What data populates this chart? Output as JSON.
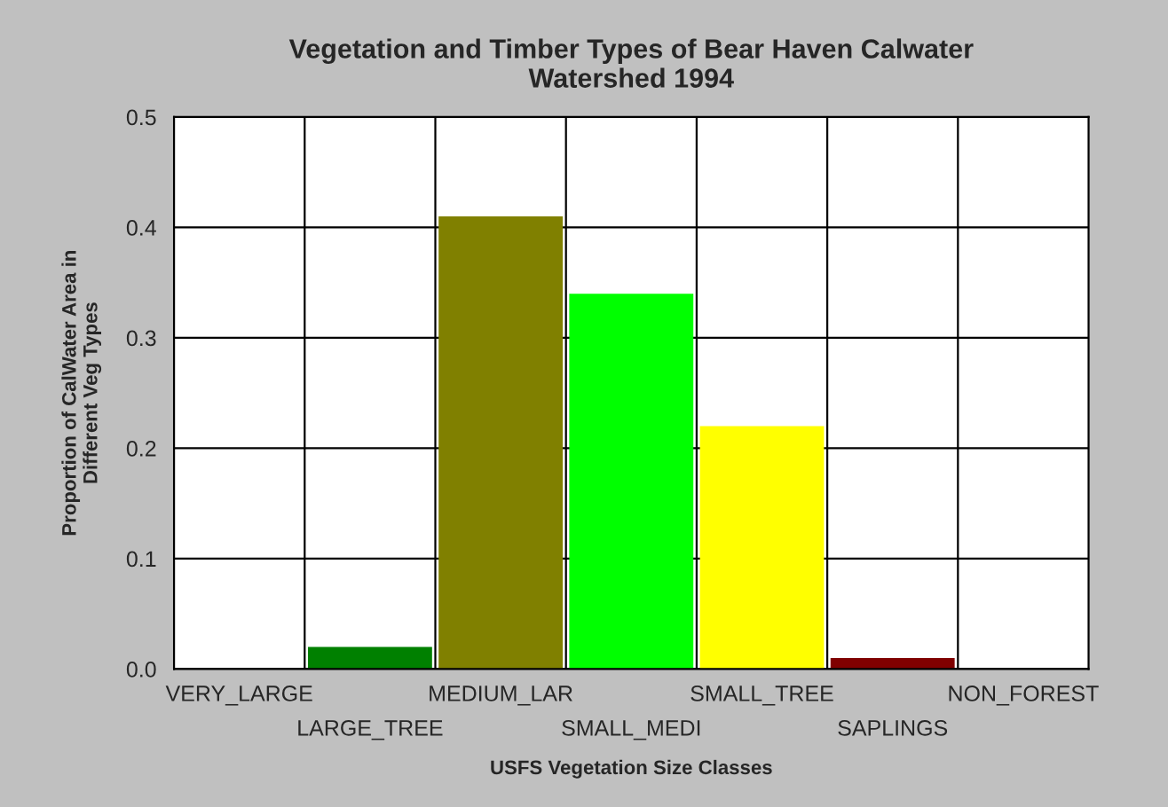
{
  "chart_data": {
    "type": "bar",
    "title": "Vegetation and Timber Types of Bear Haven Calwater\nWatershed 1994",
    "xlabel": "USFS Vegetation Size Classes",
    "ylabel": "Proportion of CalWater Area in\nDifferent Veg Types",
    "categories": [
      "VERY_LARGE",
      "LARGE_TREE",
      "MEDIUM_LAR",
      "SMALL_MEDI",
      "SMALL_TREE",
      "SAPLINGS",
      "NON_FOREST"
    ],
    "values": [
      0,
      0.02,
      0.41,
      0.34,
      0.22,
      0.01,
      0
    ],
    "colors": [
      "#008000",
      "#008000",
      "#808000",
      "#00ff00",
      "#ffff00",
      "#800000",
      "#800000"
    ],
    "ylim": [
      0,
      0.5
    ],
    "yticks": [
      {
        "value": 0,
        "label": "0.0"
      },
      {
        "value": 0.1,
        "label": "0.1"
      },
      {
        "value": 0.2,
        "label": "0.2"
      },
      {
        "value": 0.3,
        "label": "0.3"
      },
      {
        "value": 0.4,
        "label": "0.4"
      },
      {
        "value": 0.5,
        "label": "0.5"
      }
    ],
    "grid": true
  }
}
